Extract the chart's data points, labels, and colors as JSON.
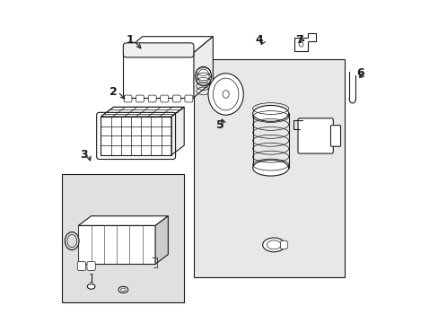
{
  "bg_color": "#ffffff",
  "light_gray": "#d8d8d8",
  "line_color": "#1a1a1a",
  "label_color": "#1a1a1a",
  "title": ""
}
